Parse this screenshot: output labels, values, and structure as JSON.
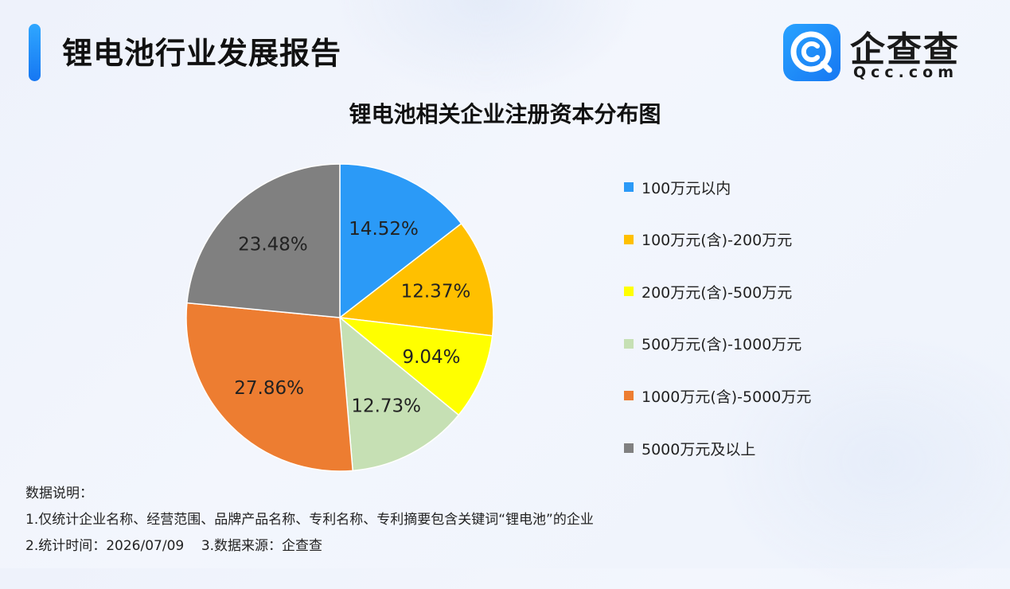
{
  "header": {
    "title": "锂电池行业发展报告"
  },
  "logo": {
    "name_cn": "企查查",
    "name_en": "Qcc.com",
    "brand_color": "#1677F2"
  },
  "chart_data": {
    "type": "pie",
    "title": "锂电池相关企业注册资本分布图",
    "legend_position": "right",
    "slices": [
      {
        "label": "100万元以内",
        "value": 14.52,
        "display": "14.52%",
        "color": "#2B9AF7"
      },
      {
        "label": "100万元(含)-200万元",
        "value": 12.37,
        "display": "12.37%",
        "color": "#FFC000"
      },
      {
        "label": "200万元(含)-500万元",
        "value": 9.04,
        "display": "9.04%",
        "color": "#FFFF00"
      },
      {
        "label": "500万元(含)-1000万元",
        "value": 12.73,
        "display": "12.73%",
        "color": "#C6E0B4"
      },
      {
        "label": "1000万元(含)-5000万元",
        "value": 27.86,
        "display": "27.86%",
        "color": "#ED7D31"
      },
      {
        "label": "5000万元及以上",
        "value": 23.48,
        "display": "23.48%",
        "color": "#808080"
      }
    ]
  },
  "notes": {
    "heading": "数据说明：",
    "line1": "1.仅统计企业名称、经营范围、品牌产品名称、专利名称、专利摘要包含关键词“锂电池”的企业",
    "line2": "2.统计时间：2026/07/09    3.数据来源：企查查"
  }
}
